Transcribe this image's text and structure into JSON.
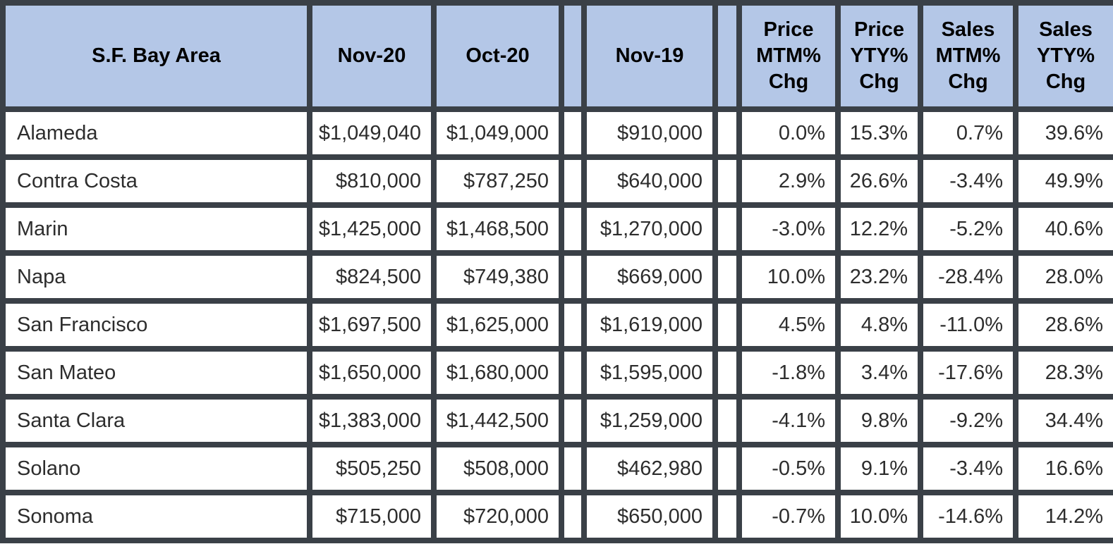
{
  "colors": {
    "header_bg": "#b4c7e7",
    "border": "#3a4047",
    "header_text": "#000000",
    "body_text": "#2d2d2d",
    "row_bg": "#ffffff"
  },
  "chart_data": {
    "type": "table",
    "columns": [
      {
        "key": "area",
        "label": "S.F. Bay Area"
      },
      {
        "key": "nov20",
        "label": "Nov-20"
      },
      {
        "key": "oct20",
        "label": "Oct-20"
      },
      {
        "key": "spacer1",
        "label": ""
      },
      {
        "key": "nov19",
        "label": "Nov-19"
      },
      {
        "key": "spacer2",
        "label": ""
      },
      {
        "key": "price_mtm",
        "label": "Price\nMTM%\nChg"
      },
      {
        "key": "price_yty",
        "label": "Price\nYTY%\nChg"
      },
      {
        "key": "sales_mtm",
        "label": "Sales\nMTM%\nChg"
      },
      {
        "key": "sales_yty",
        "label": "Sales\nYTY%\nChg"
      }
    ],
    "rows": [
      {
        "area": "Alameda",
        "nov20": "$1,049,040",
        "oct20": "$1,049,000",
        "nov19": "$910,000",
        "price_mtm": "0.0%",
        "price_yty": "15.3%",
        "sales_mtm": "0.7%",
        "sales_yty": "39.6%"
      },
      {
        "area": "Contra Costa",
        "nov20": "$810,000",
        "oct20": "$787,250",
        "nov19": "$640,000",
        "price_mtm": "2.9%",
        "price_yty": "26.6%",
        "sales_mtm": "-3.4%",
        "sales_yty": "49.9%"
      },
      {
        "area": "Marin",
        "nov20": "$1,425,000",
        "oct20": "$1,468,500",
        "nov19": "$1,270,000",
        "price_mtm": "-3.0%",
        "price_yty": "12.2%",
        "sales_mtm": "-5.2%",
        "sales_yty": "40.6%"
      },
      {
        "area": "Napa",
        "nov20": "$824,500",
        "oct20": "$749,380",
        "nov19": "$669,000",
        "price_mtm": "10.0%",
        "price_yty": "23.2%",
        "sales_mtm": "-28.4%",
        "sales_yty": "28.0%"
      },
      {
        "area": "San Francisco",
        "nov20": "$1,697,500",
        "oct20": "$1,625,000",
        "nov19": "$1,619,000",
        "price_mtm": "4.5%",
        "price_yty": "4.8%",
        "sales_mtm": "-11.0%",
        "sales_yty": "28.6%"
      },
      {
        "area": "San Mateo",
        "nov20": "$1,650,000",
        "oct20": "$1,680,000",
        "nov19": "$1,595,000",
        "price_mtm": "-1.8%",
        "price_yty": "3.4%",
        "sales_mtm": "-17.6%",
        "sales_yty": "28.3%"
      },
      {
        "area": "Santa Clara",
        "nov20": "$1,383,000",
        "oct20": "$1,442,500",
        "nov19": "$1,259,000",
        "price_mtm": "-4.1%",
        "price_yty": "9.8%",
        "sales_mtm": "-9.2%",
        "sales_yty": "34.4%"
      },
      {
        "area": "Solano",
        "nov20": "$505,250",
        "oct20": "$508,000",
        "nov19": "$462,980",
        "price_mtm": "-0.5%",
        "price_yty": "9.1%",
        "sales_mtm": "-3.4%",
        "sales_yty": "16.6%"
      },
      {
        "area": "Sonoma",
        "nov20": "$715,000",
        "oct20": "$720,000",
        "nov19": "$650,000",
        "price_mtm": "-0.7%",
        "price_yty": "10.0%",
        "sales_mtm": "-14.6%",
        "sales_yty": "14.2%"
      }
    ]
  }
}
